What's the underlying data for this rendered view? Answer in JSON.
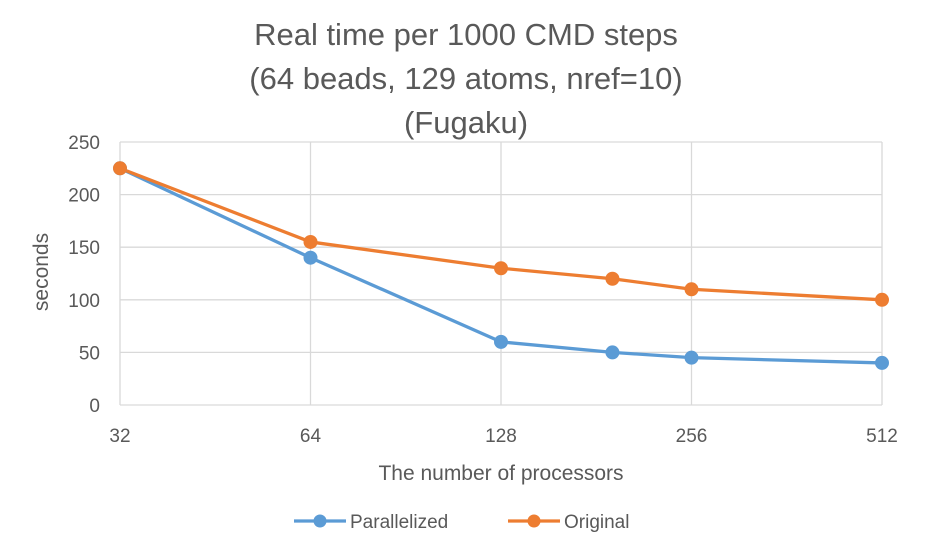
{
  "chart_data": {
    "type": "line",
    "title": [
      "Real time per 1000 CMD steps",
      "(64 beads, 129 atoms, nref=10)",
      "(Fugaku)"
    ],
    "xlabel": "The number of processors",
    "ylabel": "seconds",
    "x_scale": "log2",
    "xlim": [
      32,
      512
    ],
    "ylim": [
      0,
      250
    ],
    "x_ticks": [
      32,
      64,
      128,
      256,
      512
    ],
    "x_tick_labels": [
      "32",
      "64",
      "128",
      "256",
      "512"
    ],
    "y_ticks": [
      0,
      50,
      100,
      150,
      200,
      250
    ],
    "y_tick_labels": [
      "0",
      "50",
      "100",
      "150",
      "200",
      "250"
    ],
    "grid": true,
    "legend_position": "bottom",
    "x": [
      32,
      64,
      128,
      192,
      256,
      512
    ],
    "series": [
      {
        "name": "Parallelized",
        "color": "#5b9bd5",
        "values": [
          225,
          140,
          60,
          50,
          45,
          40
        ]
      },
      {
        "name": "Original",
        "color": "#ed7d31",
        "values": [
          225,
          155,
          130,
          120,
          110,
          100
        ]
      }
    ]
  }
}
